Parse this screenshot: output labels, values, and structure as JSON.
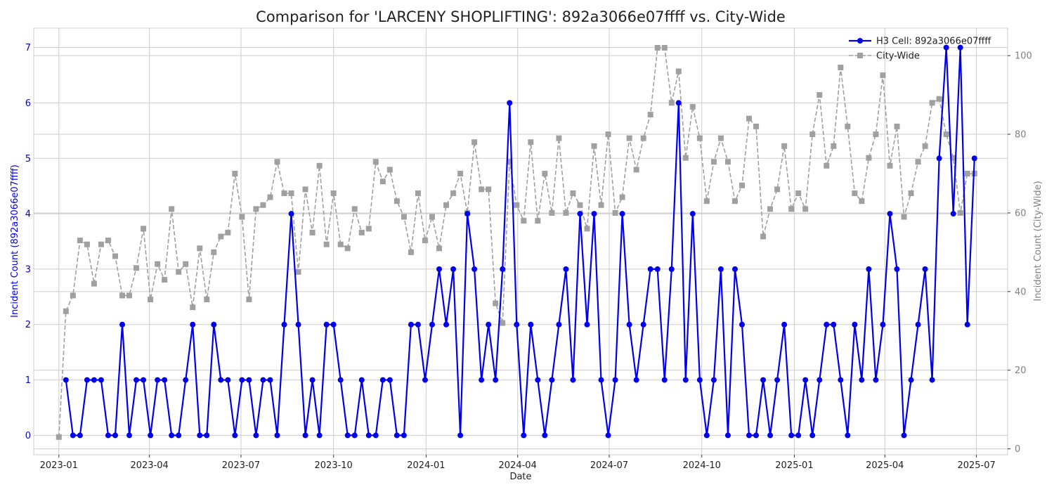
{
  "chart_data": {
    "type": "line",
    "title": "Comparison for 'LARCENY SHOPLIFTING': 892a3066e07ffff vs. City-Wide",
    "xlabel": "Date",
    "ylabel_left": "Incident Count (892a3066e07ffff)",
    "ylabel_right": "Incident Count (City-Wide)",
    "x_start": "2023-01-01",
    "x_interval_days": 7,
    "xlim": [
      "2022-12-07",
      "2025-08-01"
    ],
    "x_ticks": [
      "2023-01",
      "2023-04",
      "2023-07",
      "2023-10",
      "2024-01",
      "2024-04",
      "2024-07",
      "2024-10",
      "2025-01",
      "2025-04",
      "2025-07"
    ],
    "ylim_left": [
      -0.35,
      7.35
    ],
    "ylim_right": [
      -1.5,
      107
    ],
    "y_ticks_left": [
      0,
      1,
      2,
      3,
      4,
      5,
      6,
      7
    ],
    "y_ticks_right": [
      0,
      20,
      40,
      60,
      80,
      100
    ],
    "grid": true,
    "legend_position": "top-right",
    "series": [
      {
        "name": "H3 Cell: 892a3066e07ffff",
        "axis": "left",
        "color": "#0000ee",
        "marker": "circle",
        "line_style": "solid",
        "values": [
          null,
          1,
          0,
          0,
          1,
          1,
          1,
          0,
          0,
          2,
          0,
          1,
          1,
          0,
          1,
          1,
          0,
          0,
          1,
          2,
          0,
          0,
          2,
          1,
          1,
          0,
          1,
          1,
          0,
          1,
          1,
          0,
          2,
          4,
          2,
          0,
          1,
          0,
          2,
          2,
          1,
          0,
          0,
          1,
          0,
          0,
          1,
          1,
          0,
          0,
          2,
          2,
          1,
          2,
          3,
          2,
          3,
          0,
          4,
          3,
          1,
          2,
          1,
          3,
          6,
          2,
          0,
          2,
          1,
          0,
          1,
          2,
          3,
          1,
          4,
          2,
          4,
          1,
          0,
          1,
          4,
          2,
          1,
          2,
          3,
          3,
          1,
          3,
          6,
          1,
          4,
          1,
          0,
          1,
          3,
          0,
          3,
          2,
          0,
          0,
          1,
          0,
          1,
          2,
          0,
          0,
          1,
          0,
          1,
          2,
          2,
          1,
          0,
          2,
          1,
          3,
          1,
          2,
          4,
          3,
          0,
          1,
          2,
          3,
          1,
          5,
          7,
          4,
          7,
          2,
          5
        ]
      },
      {
        "name": "City-Wide",
        "axis": "right",
        "color": "#a0a0a0",
        "marker": "square",
        "line_style": "dashed",
        "values": [
          3,
          35,
          39,
          53,
          52,
          42,
          52,
          53,
          49,
          39,
          39,
          46,
          56,
          38,
          47,
          43,
          61,
          45,
          47,
          36,
          51,
          38,
          50,
          54,
          55,
          70,
          59,
          38,
          61,
          62,
          64,
          73,
          65,
          65,
          45,
          66,
          55,
          72,
          52,
          65,
          52,
          51,
          61,
          55,
          56,
          73,
          68,
          71,
          63,
          59,
          50,
          65,
          53,
          59,
          51,
          62,
          65,
          70,
          60,
          78,
          66,
          66,
          37,
          32,
          73,
          62,
          58,
          78,
          58,
          70,
          60,
          79,
          60,
          65,
          62,
          56,
          77,
          62,
          80,
          60,
          64,
          79,
          71,
          79,
          85,
          102,
          102,
          88,
          96,
          74,
          87,
          79,
          63,
          73,
          79,
          73,
          63,
          67,
          84,
          82,
          54,
          61,
          66,
          77,
          61,
          65,
          61,
          80,
          90,
          72,
          77,
          97,
          82,
          65,
          63,
          74,
          80,
          95,
          72,
          82,
          59,
          65,
          73,
          77,
          88,
          89,
          80,
          74,
          60,
          70,
          70
        ]
      }
    ]
  }
}
